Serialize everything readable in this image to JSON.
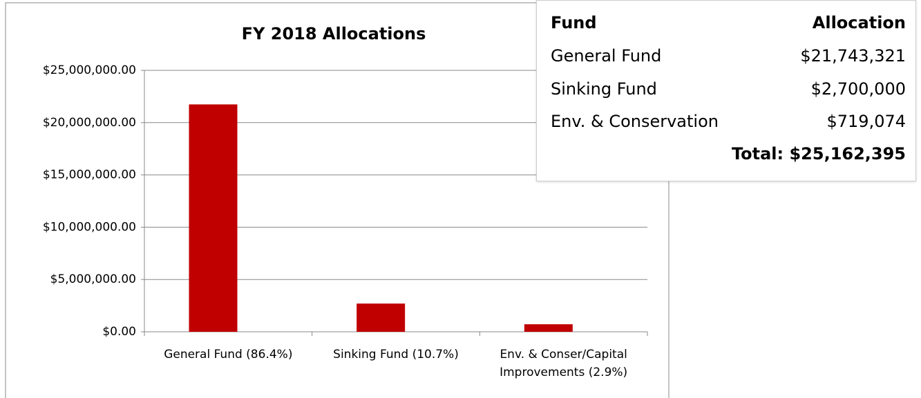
{
  "chart_data": {
    "type": "bar",
    "title": "FY 2018 Allocations",
    "categories": [
      "General Fund (86.4%)",
      "Sinking Fund (10.7%)",
      "Env. & Conser/Capital Improvements (2.9%)"
    ],
    "values": [
      21743321,
      2700000,
      719074
    ],
    "color": "#c00000",
    "ylim": [
      0,
      25000000
    ],
    "yticks": [
      {
        "value": 0,
        "label": "$0.00"
      },
      {
        "value": 5000000,
        "label": "$5,000,000.00"
      },
      {
        "value": 10000000,
        "label": "$10,000,000.00"
      },
      {
        "value": 15000000,
        "label": "$15,000,000.00"
      },
      {
        "value": 20000000,
        "label": "$20,000,000.00"
      },
      {
        "value": 25000000,
        "label": "$25,000,000.00"
      }
    ],
    "grid": true
  },
  "table": {
    "header": [
      "Fund",
      "Allocation"
    ],
    "rows": [
      [
        "General Fund",
        "$21,743,321"
      ],
      [
        "Sinking Fund",
        "$2,700,000"
      ],
      [
        "Env. & Conservation",
        "$719,074"
      ]
    ],
    "total": "Total: $25,162,395"
  }
}
